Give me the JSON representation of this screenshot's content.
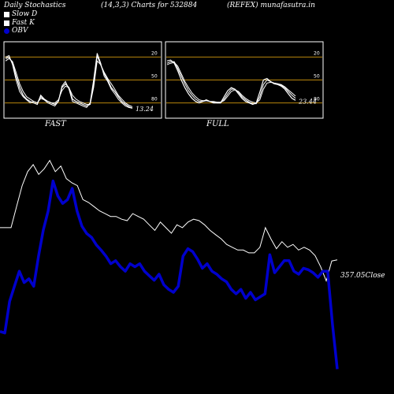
{
  "header": {
    "left": "Daily Stochastics",
    "center": "(14,3,3) Charts for 532884",
    "right": "(REFEX) munafasutra.in"
  },
  "legend": [
    {
      "label": "Slow  D",
      "color": "#ffffff"
    },
    {
      "label": "Fast K",
      "color": "#ffffff"
    },
    {
      "label": "OBV",
      "color": "#0000cc"
    }
  ],
  "colors": {
    "grid": "#b8860b",
    "panel_border": "#ffffff",
    "price": "#ffffff",
    "obv": "#0000cc"
  },
  "chart_data": [
    {
      "type": "line",
      "name": "FAST",
      "title": "FAST",
      "ylim": [
        0,
        100
      ],
      "levels": [
        20,
        50,
        80
      ],
      "tick_labels": [
        "80",
        "50",
        "20"
      ],
      "last_label": "13.24",
      "series": [
        {
          "values": [
            78,
            80,
            72,
            55,
            40,
            30,
            25,
            22,
            20,
            18,
            30,
            25,
            22,
            20,
            18,
            22,
            40,
            45,
            40,
            25,
            22,
            20,
            18,
            16,
            18,
            45,
            82,
            70,
            58,
            50,
            40,
            35,
            28,
            22,
            18,
            15,
            13.24
          ]
        },
        {
          "values": [
            80,
            82,
            70,
            50,
            35,
            28,
            24,
            20,
            22,
            20,
            28,
            24,
            20,
            18,
            16,
            22,
            42,
            48,
            38,
            22,
            20,
            18,
            16,
            14,
            20,
            50,
            85,
            72,
            55,
            48,
            38,
            32,
            25,
            20,
            16,
            14,
            13
          ]
        },
        {
          "values": [
            75,
            78,
            74,
            60,
            45,
            35,
            28,
            25,
            22,
            20,
            26,
            24,
            22,
            20,
            20,
            24,
            36,
            42,
            40,
            30,
            25,
            22,
            20,
            18,
            18,
            40,
            75,
            70,
            60,
            52,
            45,
            38,
            30,
            25,
            20,
            17,
            15
          ]
        }
      ]
    },
    {
      "type": "line",
      "name": "FULL",
      "title": "FULL",
      "ylim": [
        0,
        100
      ],
      "levels": [
        20,
        50,
        80
      ],
      "tick_labels": [
        "80",
        "50",
        "20"
      ],
      "last_label": "23.44",
      "series": [
        {
          "values": [
            75,
            76,
            72,
            62,
            50,
            40,
            32,
            26,
            22,
            20,
            22,
            24,
            22,
            20,
            20,
            20,
            28,
            36,
            40,
            38,
            32,
            26,
            22,
            20,
            18,
            20,
            34,
            50,
            52,
            48,
            45,
            44,
            42,
            38,
            32,
            26,
            23.44
          ]
        },
        {
          "values": [
            72,
            74,
            74,
            65,
            55,
            45,
            36,
            30,
            25,
            22,
            22,
            23,
            22,
            21,
            20,
            20,
            25,
            32,
            38,
            38,
            34,
            28,
            24,
            21,
            19,
            19,
            28,
            44,
            50,
            48,
            46,
            45,
            43,
            40,
            35,
            30,
            26
          ]
        },
        {
          "values": [
            70,
            72,
            73,
            68,
            58,
            48,
            40,
            33,
            28,
            24,
            23,
            23,
            22,
            22,
            21,
            21,
            23,
            29,
            35,
            37,
            35,
            30,
            26,
            23,
            21,
            20,
            24,
            38,
            46,
            47,
            46,
            45,
            44,
            41,
            37,
            33,
            29
          ]
        }
      ]
    },
    {
      "type": "line",
      "name": "Price",
      "last_label": "357.05",
      "label_suffix": "Close",
      "series": [
        {
          "name": "Close",
          "values": [
            380,
            380,
            380,
            395,
            410,
            420,
            425,
            418,
            422,
            428,
            420,
            424,
            415,
            412,
            410,
            400,
            398,
            395,
            392,
            390,
            388,
            388,
            386,
            385,
            390,
            388,
            386,
            382,
            378,
            384,
            380,
            376,
            382,
            380,
            384,
            386,
            385,
            382,
            378,
            375,
            372,
            368,
            366,
            364,
            364,
            362,
            362,
            366,
            380,
            372,
            365,
            370,
            366,
            368,
            364,
            366,
            364,
            360,
            352,
            342,
            356.2,
            357.05
          ]
        }
      ]
    },
    {
      "type": "line",
      "name": "OBV",
      "series": [
        {
          "name": "OBV",
          "values": [
            -120,
            -122,
            -80,
            -60,
            -40,
            -55,
            -50,
            -60,
            -20,
            15,
            40,
            80,
            60,
            50,
            55,
            70,
            40,
            20,
            10,
            5,
            -5,
            -12,
            -20,
            -30,
            -26,
            -34,
            -40,
            -30,
            -34,
            -30,
            -40,
            -46,
            -52,
            -44,
            -58,
            -64,
            -68,
            -60,
            -20,
            -10,
            -14,
            -24,
            -36,
            -30,
            -40,
            -44,
            -50,
            -54,
            -64,
            -70,
            -64,
            -76,
            -68,
            -78,
            -74,
            -70,
            -18,
            -42,
            -34,
            -26,
            -26,
            -40,
            -44,
            -36,
            -38,
            -42,
            -48,
            -40,
            -40,
            -110,
            -170
          ]
        }
      ]
    }
  ]
}
